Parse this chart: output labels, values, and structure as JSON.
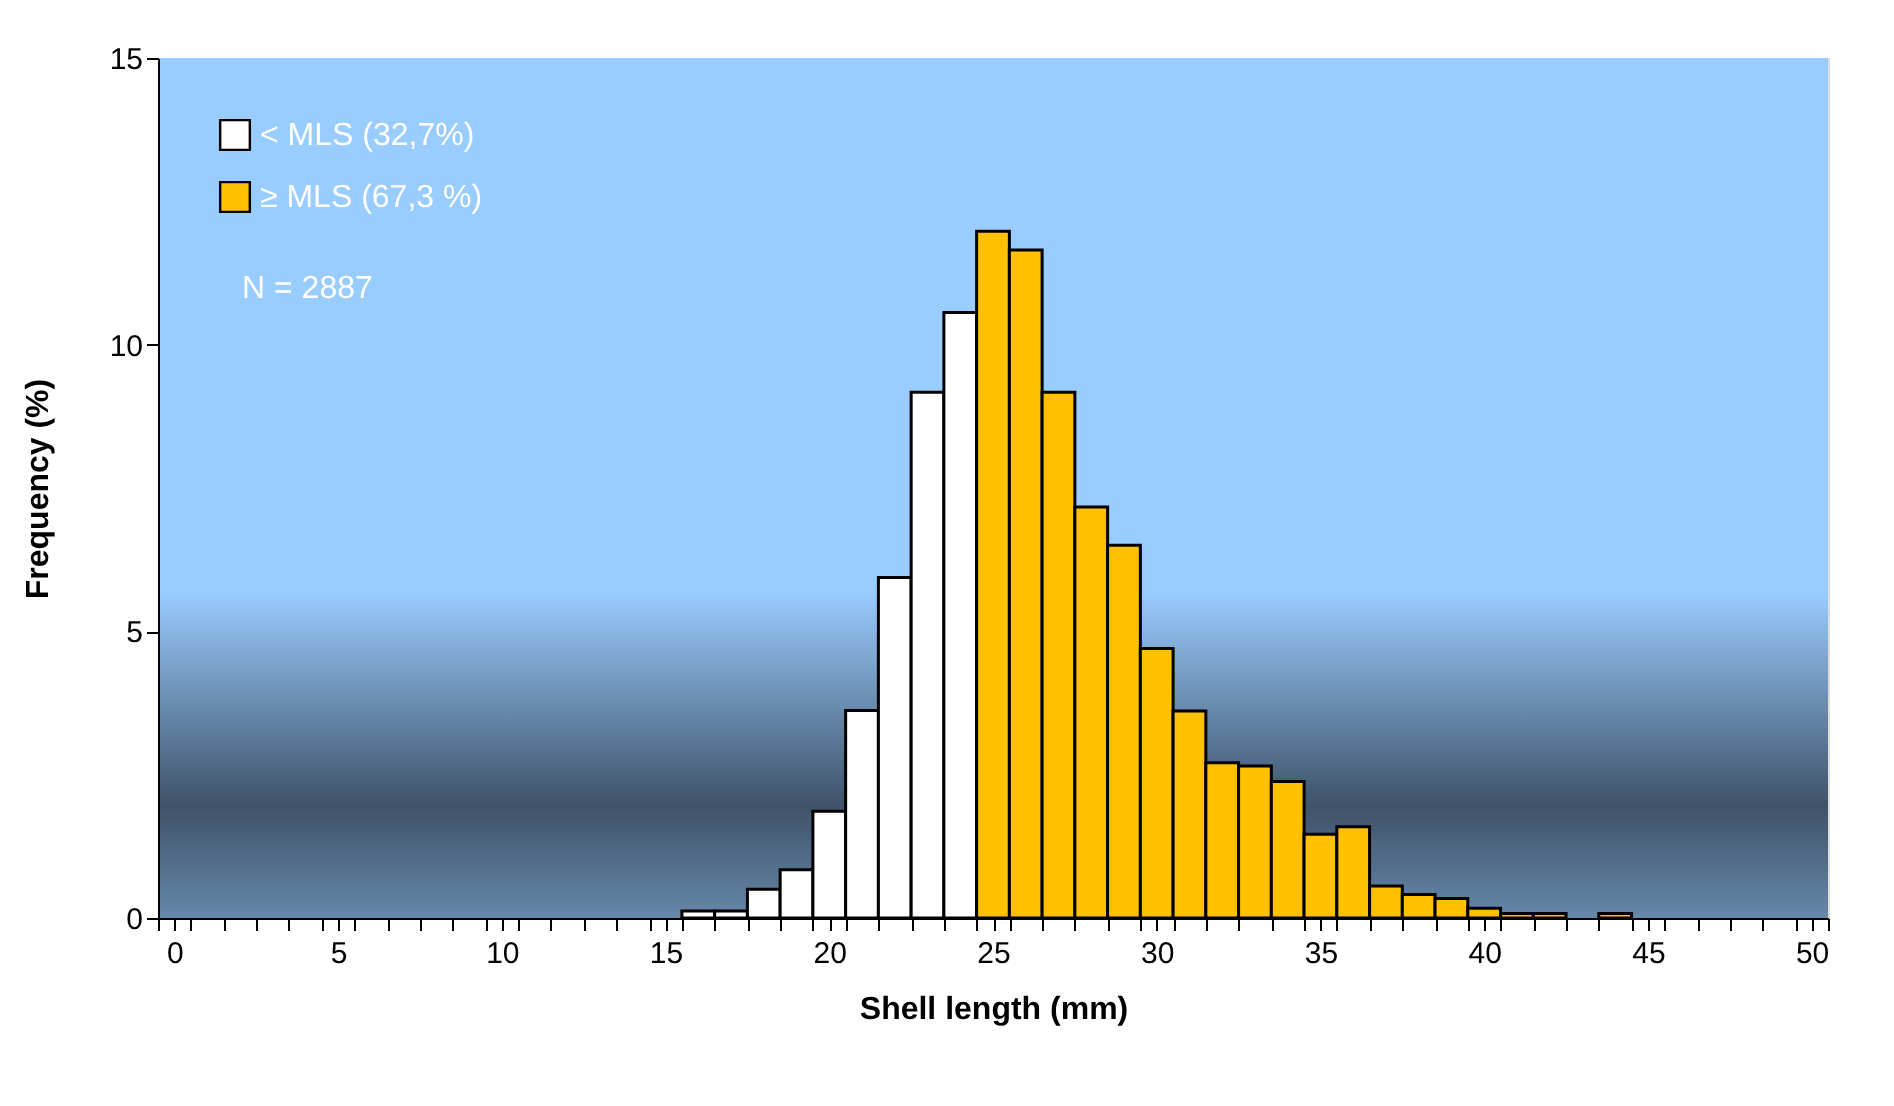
{
  "chart_data": {
    "type": "histogram",
    "xlabel": "Shell length (mm)",
    "ylabel": "Frequency (%)",
    "bins": [
      -0.5,
      0.5,
      1.5,
      2.5,
      3.5,
      4.5,
      5.5,
      6.5,
      7.5,
      8.5,
      9.5,
      10.5,
      11.5,
      12.5,
      13.5,
      14.5,
      15.5,
      16.5,
      17.5,
      18.5,
      19.5,
      20.5,
      21.5,
      22.5,
      23.5,
      24.5,
      25.5,
      26.5,
      27.5,
      28.5,
      29.5,
      30.5,
      31.5,
      32.5,
      33.5,
      34.5,
      35.5,
      36.5,
      37.5,
      38.5,
      39.5,
      40.5,
      41.5,
      42.5,
      43.5,
      44.5,
      45.5,
      46.5,
      47.5,
      48.5,
      49.5,
      50.5
    ],
    "series": [
      {
        "name": "< MLS (32,7%)",
        "color": "#ffffff",
        "values": [
          null,
          null,
          null,
          null,
          null,
          null,
          null,
          null,
          null,
          null,
          null,
          null,
          null,
          null,
          null,
          null,
          0.12,
          0.12,
          0.5,
          0.84,
          1.86,
          3.62,
          5.94,
          9.17,
          10.56,
          null,
          null,
          null,
          null,
          null,
          null,
          null,
          null,
          null,
          null,
          null,
          null,
          null,
          null,
          null,
          null,
          null,
          null,
          null,
          null,
          null,
          null,
          null,
          null,
          null,
          null
        ]
      },
      {
        "name": "≥ MLS (67,3 %)",
        "color": "#ffc000",
        "values": [
          null,
          null,
          null,
          null,
          null,
          null,
          null,
          null,
          null,
          null,
          null,
          null,
          null,
          null,
          null,
          null,
          null,
          null,
          null,
          null,
          null,
          null,
          null,
          null,
          null,
          11.98,
          11.65,
          9.17,
          7.17,
          6.5,
          4.7,
          3.61,
          2.71,
          2.65,
          2.38,
          1.46,
          1.59,
          0.56,
          0.41,
          0.34,
          0.17,
          0.08,
          0.08,
          null,
          0.08,
          null,
          null,
          null,
          null,
          null,
          null
        ]
      }
    ],
    "xlim": [
      -0.5,
      50.5
    ],
    "xticks": [
      {
        "value": -0.5,
        "label": null
      },
      0,
      {
        "value": 0.5,
        "label": null
      },
      {
        "value": 1.5,
        "label": null
      },
      {
        "value": 2.5,
        "label": null
      },
      {
        "value": 3.5,
        "label": null
      },
      {
        "value": 4.5,
        "label": null
      },
      5,
      {
        "value": 5.5,
        "label": null
      },
      {
        "value": 6.5,
        "label": null
      },
      {
        "value": 7.5,
        "label": null
      },
      {
        "value": 8.5,
        "label": null
      },
      {
        "value": 9.5,
        "label": null
      },
      10,
      {
        "value": 10.5,
        "label": null
      },
      {
        "value": 11.5,
        "label": null
      },
      {
        "value": 12.5,
        "label": null
      },
      {
        "value": 13.5,
        "label": null
      },
      {
        "value": 14.5,
        "label": null
      },
      15,
      {
        "value": 15.5,
        "label": null
      },
      {
        "value": 16.5,
        "label": null
      },
      {
        "value": 17.5,
        "label": null
      },
      {
        "value": 18.5,
        "label": null
      },
      {
        "value": 19.5,
        "label": null
      },
      20,
      {
        "value": 20.5,
        "label": null
      },
      {
        "value": 21.5,
        "label": null
      },
      {
        "value": 22.5,
        "label": null
      },
      {
        "value": 23.5,
        "label": null
      },
      {
        "value": 24.5,
        "label": null
      },
      25,
      {
        "value": 25.5,
        "label": null
      },
      {
        "value": 26.5,
        "label": null
      },
      {
        "value": 27.5,
        "label": null
      },
      {
        "value": 28.5,
        "label": null
      },
      {
        "value": 29.5,
        "label": null
      },
      30,
      {
        "value": 30.5,
        "label": null
      },
      {
        "value": 31.5,
        "label": null
      },
      {
        "value": 32.5,
        "label": null
      },
      {
        "value": 33.5,
        "label": null
      },
      {
        "value": 34.5,
        "label": null
      },
      35,
      {
        "value": 35.5,
        "label": null
      },
      {
        "value": 36.5,
        "label": null
      },
      {
        "value": 37.5,
        "label": null
      },
      {
        "value": 38.5,
        "label": null
      },
      {
        "value": 39.5,
        "label": null
      },
      40,
      {
        "value": 40.5,
        "label": null
      },
      {
        "value": 41.5,
        "label": null
      },
      {
        "value": 42.5,
        "label": null
      },
      {
        "value": 43.5,
        "label": null
      },
      {
        "value": 44.5,
        "label": null
      },
      45,
      {
        "value": 45.5,
        "label": null
      },
      {
        "value": 46.5,
        "label": null
      },
      {
        "value": 47.5,
        "label": null
      },
      {
        "value": 48.5,
        "label": null
      },
      {
        "value": 49.5,
        "label": null
      },
      50,
      {
        "value": 50.5,
        "label": null
      }
    ],
    "ylim": [
      0,
      15
    ],
    "yticks": [
      0,
      5,
      10,
      15
    ],
    "grid": false,
    "legend": "top left",
    "annotations": [
      "N = 2887"
    ]
  }
}
